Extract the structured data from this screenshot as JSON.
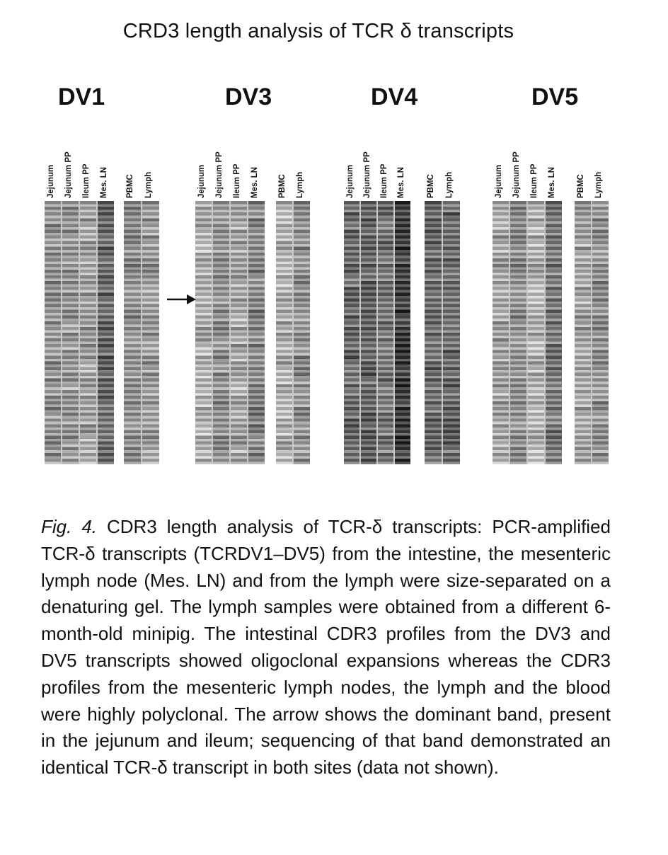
{
  "title": "CRD3 length analysis of TCR δ transcripts",
  "panels": [
    {
      "name": "DV1",
      "lanes_a": [
        "Jejunum",
        "Jejunum PP",
        "Ileum PP",
        "Mes. LN"
      ],
      "lanes_b": [
        "PBMC",
        "Lymph"
      ]
    },
    {
      "name": "DV3",
      "lanes_a": [
        "Jejunum",
        "Jejunum PP",
        "Ileum PP",
        "Mes. LN"
      ],
      "lanes_b": [
        "PBMC",
        "Lymph"
      ]
    },
    {
      "name": "DV4",
      "lanes_a": [
        "Jejunum",
        "Jejunum PP",
        "Ileum PP",
        "Mes. LN"
      ],
      "lanes_b": [
        "PBMC",
        "Lymph"
      ]
    },
    {
      "name": "DV5",
      "lanes_a": [
        "Jejunum",
        "Jejunum PP",
        "Ileum PP",
        "Mes. LN"
      ],
      "lanes_b": [
        "PBMC",
        "Lymph"
      ]
    }
  ],
  "caption": {
    "fig_ref": "Fig. 4.",
    "text": "CDR3 length analysis of TCR-δ transcripts: PCR-amplified TCR-δ transcripts (TCRDV1–DV5) from the intestine, the mesenteric lymph node (Mes. LN) and from the lymph were size-separated on a denaturing gel. The lymph samples were obtained from a different 6-month-old minipig. The intestinal CDR3 profiles from the DV3 and DV5 transcripts showed oligoclonal expansions whereas the CDR3 profiles from the mesenteric lymph nodes, the lymph and the blood were highly polyclonal. The arrow shows the dominant band, present in the jejunum and ileum; sequencing of that band demonstrated an identical TCR-δ transcript in both sites (data not shown)."
  }
}
